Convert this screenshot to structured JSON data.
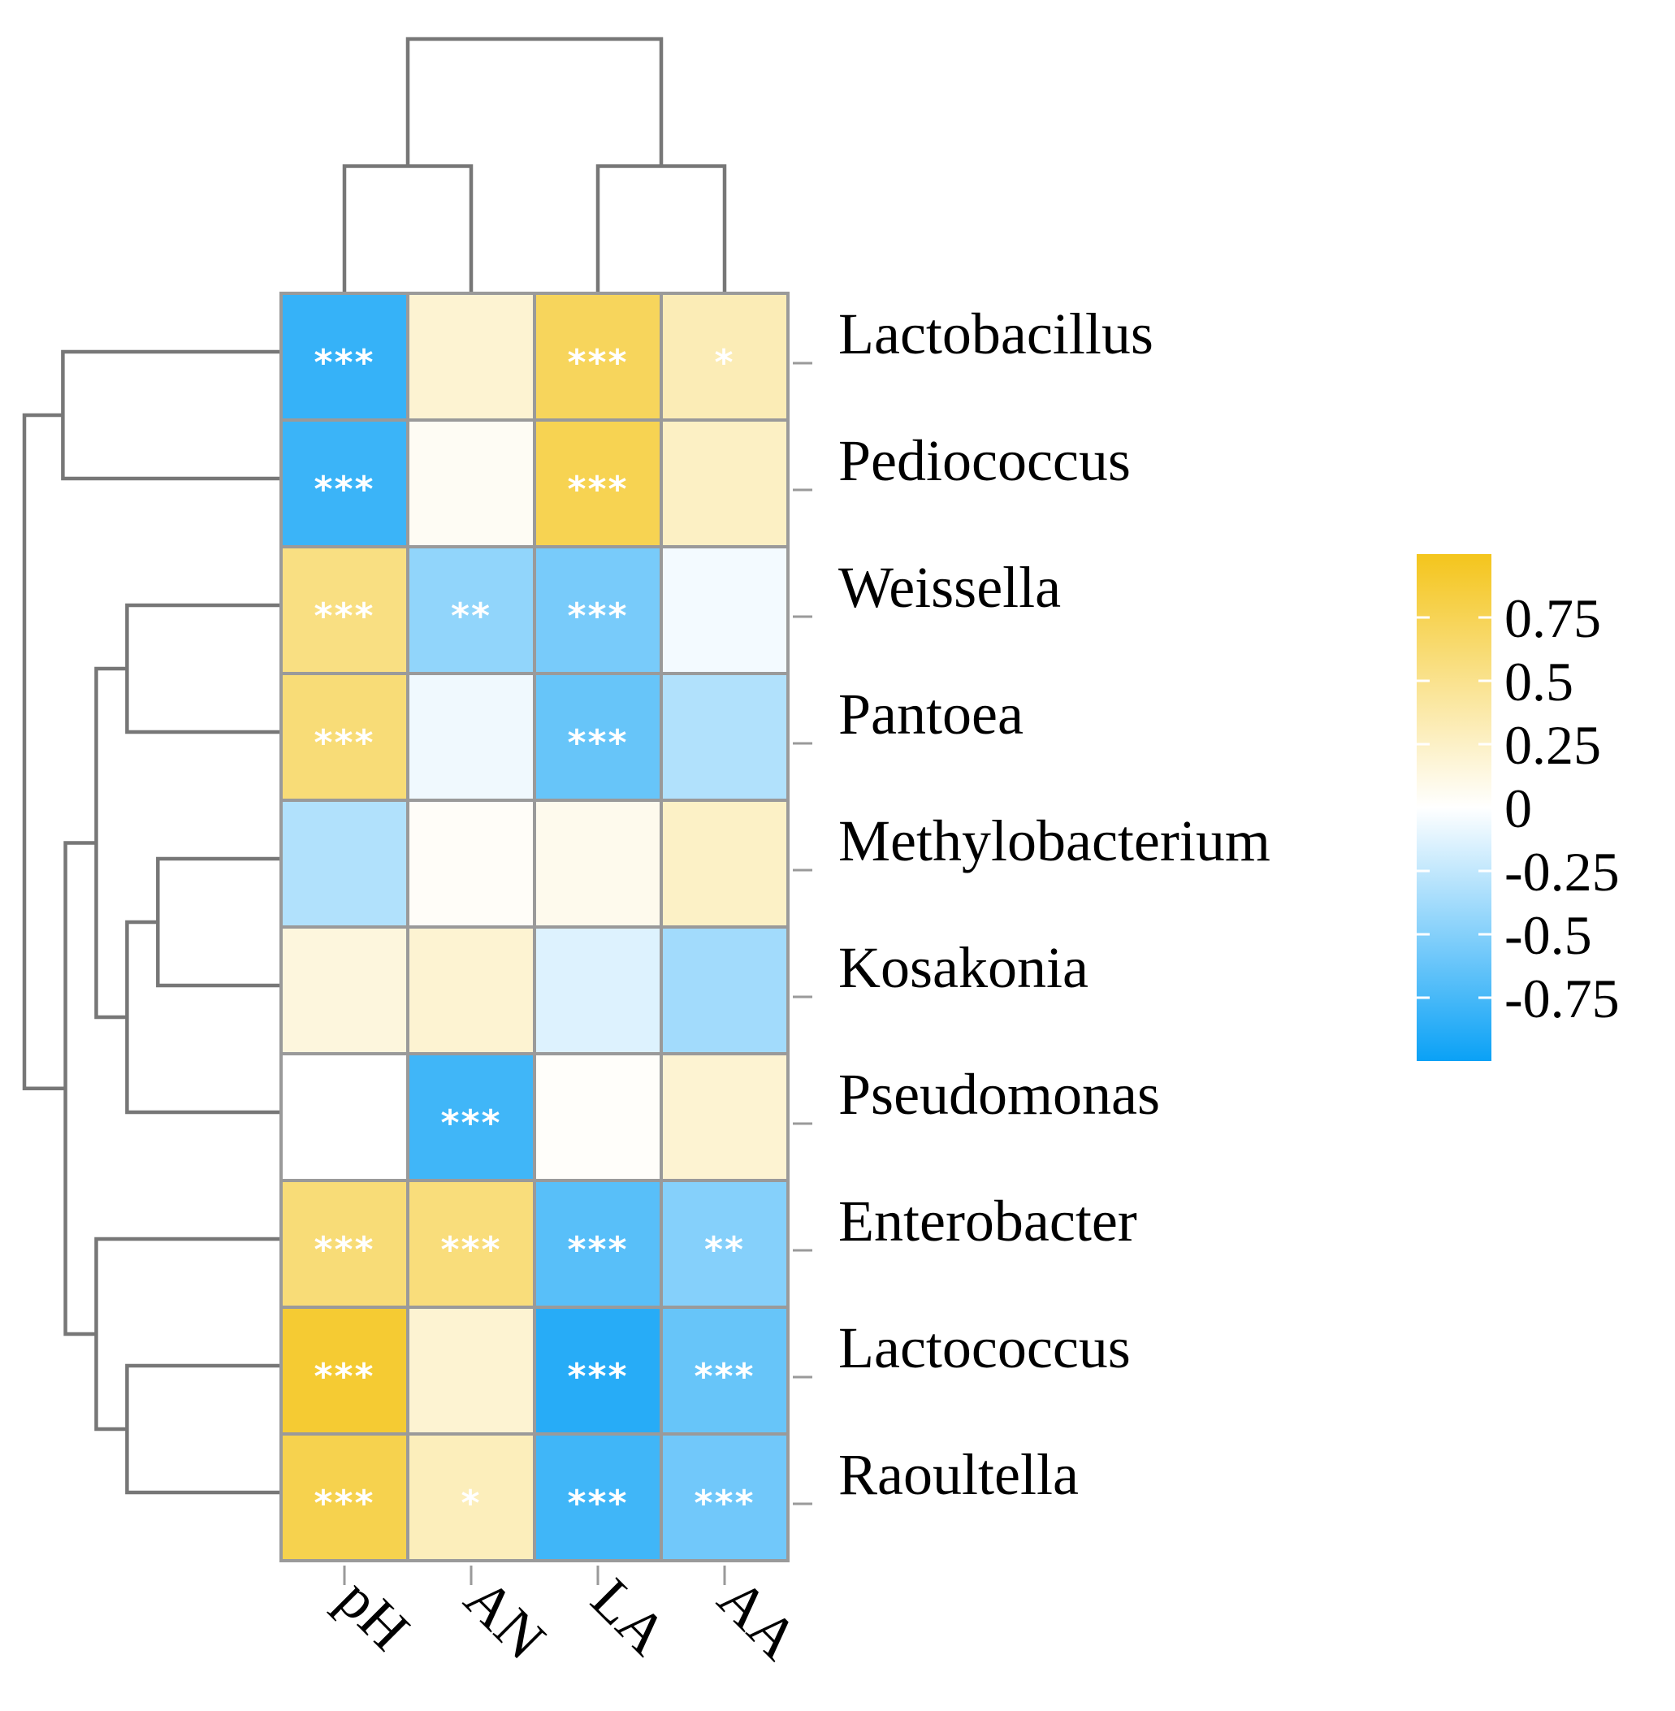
{
  "chart_data": {
    "type": "heatmap",
    "title": "",
    "rows": [
      "Lactobacillus",
      "Pediococcus",
      "Weissella",
      "Pantoea",
      "Methylobacterium",
      "Kosakonia",
      "Pseudomonas",
      "Enterobacter",
      "Lactococcus",
      "Raoultella"
    ],
    "columns": [
      "pH",
      "AN",
      "LA",
      "AA"
    ],
    "values": [
      [
        -0.82,
        0.2,
        0.72,
        0.32
      ],
      [
        -0.8,
        0.05,
        0.76,
        0.26
      ],
      [
        0.55,
        -0.45,
        -0.55,
        -0.05
      ],
      [
        0.6,
        -0.06,
        -0.62,
        -0.32
      ],
      [
        -0.32,
        0.03,
        0.08,
        0.25
      ],
      [
        0.15,
        0.2,
        -0.14,
        -0.38
      ],
      [
        0.0,
        -0.78,
        0.02,
        0.2
      ],
      [
        0.6,
        0.58,
        -0.68,
        -0.5
      ],
      [
        0.9,
        0.2,
        -0.88,
        -0.62
      ],
      [
        0.78,
        0.3,
        -0.78,
        -0.58
      ]
    ],
    "significance": [
      [
        "***",
        "",
        "***",
        "*"
      ],
      [
        "***",
        "",
        "***",
        ""
      ],
      [
        "***",
        "**",
        "***",
        ""
      ],
      [
        "***",
        "",
        "***",
        ""
      ],
      [
        "",
        "",
        "",
        ""
      ],
      [
        "",
        "",
        "",
        ""
      ],
      [
        "",
        "***",
        "",
        ""
      ],
      [
        "***",
        "***",
        "***",
        "**"
      ],
      [
        "***",
        "",
        "***",
        "***"
      ],
      [
        "***",
        "*",
        "***",
        "***"
      ]
    ],
    "color_scale": {
      "min": -1,
      "max": 1,
      "low_color": "#0aa1f6",
      "mid_color": "#ffffff",
      "high_color": "#f4c51c"
    },
    "legend": {
      "position": "right",
      "ticks": [
        0.75,
        0.5,
        0.25,
        0,
        -0.25,
        -0.5,
        -0.75
      ],
      "tick_labels": [
        "0.75",
        "0.5",
        "0.25",
        "0",
        "-0.25",
        "-0.5",
        "-0.75"
      ]
    },
    "column_dendrogram": {
      "order": [
        "pH",
        "AN",
        "LA",
        "AA"
      ],
      "merges": [
        {
          "left": "pH",
          "right": "AN",
          "height": 0.5
        },
        {
          "left": "LA",
          "right": "AA",
          "height": 0.5
        },
        {
          "left": "pH+AN",
          "right": "LA+AA",
          "height": 1.0
        }
      ]
    },
    "row_dendrogram": {
      "merges": [
        {
          "left": "Lactobacillus",
          "right": "Pediococcus",
          "height": 0.85
        },
        {
          "left": "Weissella",
          "right": "Pantoea",
          "height": 0.6
        },
        {
          "left": "Methylobacterium",
          "right": "Kosakonia",
          "height": 0.48
        },
        {
          "left": "Methylobacterium+Kosakonia",
          "right": "Pseudomonas",
          "height": 0.6
        },
        {
          "left": "Weissella+Pantoea",
          "right": "Methylobacterium+Kosakonia+Pseudomonas",
          "height": 0.72
        },
        {
          "left": "Lactococcus",
          "right": "Raoultella",
          "height": 0.6
        },
        {
          "left": "Enterobacter",
          "right": "Lactococcus+Raoultella",
          "height": 0.72
        },
        {
          "left": "Weissella+Pantoea+Methylobacterium+Kosakonia+Pseudomonas",
          "right": "Enterobacter+Lactococcus+Raoultella",
          "height": 0.84
        },
        {
          "left": "Lactobacillus+Pediococcus",
          "right": "rest",
          "height": 1.0
        }
      ]
    }
  }
}
